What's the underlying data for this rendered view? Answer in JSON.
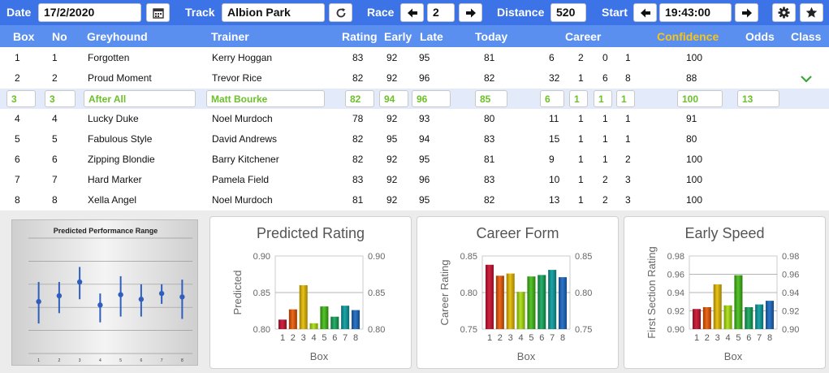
{
  "toolbar": {
    "date_label": "Date",
    "date_value": "17/2/2020",
    "track_label": "Track",
    "track_value": "Albion Park",
    "race_label": "Race",
    "race_value": "2",
    "distance_label": "Distance",
    "distance_value": "520",
    "start_label": "Start",
    "start_value": "19:43:00",
    "icons": [
      "calendar-icon",
      "refresh-icon",
      "arrow-left-icon",
      "arrow-right-icon",
      "gear-icon",
      "star-icon"
    ]
  },
  "columns": {
    "box": "Box",
    "no": "No",
    "greyhound": "Greyhound",
    "trainer": "Trainer",
    "rating": "Rating",
    "early": "Early",
    "late": "Late",
    "today": "Today",
    "career": "Career",
    "confidence": "Confidence",
    "odds": "Odds",
    "class": "Class"
  },
  "colors": {
    "header": "#3c73e6",
    "subheader": "#5a8fef",
    "confidence": "#f5c518",
    "selected_text": "#6cc02a",
    "check": "#3aa63a"
  },
  "rows": [
    {
      "box": "1",
      "no": "1",
      "greyhound": "Forgotten",
      "trainer": "Kerry Hoggan",
      "rating": "83",
      "early": "92",
      "late": "95",
      "today": "81",
      "c1": "6",
      "c2": "2",
      "c3": "0",
      "c4": "1",
      "confidence": "100",
      "odds": "",
      "cls": false
    },
    {
      "box": "2",
      "no": "2",
      "greyhound": "Proud Moment",
      "trainer": "Trevor Rice",
      "rating": "82",
      "early": "92",
      "late": "96",
      "today": "82",
      "c1": "32",
      "c2": "1",
      "c3": "6",
      "c4": "8",
      "confidence": "88",
      "odds": "",
      "cls": true
    },
    {
      "box": "3",
      "no": "3",
      "greyhound": "After All",
      "trainer": "Matt Bourke",
      "rating": "82",
      "early": "94",
      "late": "96",
      "today": "85",
      "c1": "6",
      "c2": "1",
      "c3": "1",
      "c4": "1",
      "confidence": "100",
      "odds": "13",
      "cls": false,
      "selected": true
    },
    {
      "box": "4",
      "no": "4",
      "greyhound": "Lucky Duke",
      "trainer": "Noel Murdoch",
      "rating": "78",
      "early": "92",
      "late": "93",
      "today": "80",
      "c1": "11",
      "c2": "1",
      "c3": "1",
      "c4": "1",
      "confidence": "91",
      "odds": "",
      "cls": false
    },
    {
      "box": "5",
      "no": "5",
      "greyhound": "Fabulous Style",
      "trainer": "David Andrews",
      "rating": "82",
      "early": "95",
      "late": "94",
      "today": "83",
      "c1": "15",
      "c2": "1",
      "c3": "1",
      "c4": "1",
      "confidence": "80",
      "odds": "",
      "cls": false
    },
    {
      "box": "6",
      "no": "6",
      "greyhound": "Zipping Blondie",
      "trainer": "Barry Kitchener",
      "rating": "82",
      "early": "92",
      "late": "95",
      "today": "81",
      "c1": "9",
      "c2": "1",
      "c3": "1",
      "c4": "2",
      "confidence": "100",
      "odds": "",
      "cls": false
    },
    {
      "box": "7",
      "no": "7",
      "greyhound": "Hard Marker",
      "trainer": "Pamela Field",
      "rating": "83",
      "early": "92",
      "late": "96",
      "today": "83",
      "c1": "10",
      "c2": "1",
      "c3": "2",
      "c4": "3",
      "confidence": "100",
      "odds": "",
      "cls": false
    },
    {
      "box": "8",
      "no": "8",
      "greyhound": "Xella Angel",
      "trainer": "Noel Murdoch",
      "rating": "81",
      "early": "92",
      "late": "95",
      "today": "82",
      "c1": "13",
      "c2": "1",
      "c3": "2",
      "c4": "3",
      "confidence": "100",
      "odds": "",
      "cls": false
    }
  ],
  "chart_data": [
    {
      "type": "scatter",
      "title": "Predicted Performance Range",
      "xlabel": "",
      "ylabel": "",
      "categories": [
        "1",
        "2",
        "3",
        "4",
        "5",
        "6",
        "7",
        "8"
      ],
      "values": [
        0.45,
        0.5,
        0.62,
        0.42,
        0.51,
        0.47,
        0.52,
        0.49
      ],
      "low": [
        0.26,
        0.35,
        0.47,
        0.27,
        0.32,
        0.32,
        0.43,
        0.3
      ],
      "high": [
        0.62,
        0.62,
        0.75,
        0.52,
        0.67,
        0.6,
        0.6,
        0.64
      ],
      "ylim": [
        0,
        1
      ],
      "grid": true
    },
    {
      "type": "bar",
      "title": "Predicted Rating",
      "xlabel": "Box",
      "ylabel": "Predicted",
      "categories": [
        "1",
        "2",
        "3",
        "4",
        "5",
        "6",
        "7",
        "8"
      ],
      "values": [
        0.813,
        0.827,
        0.86,
        0.808,
        0.831,
        0.817,
        0.832,
        0.826
      ],
      "ylim": [
        0.8,
        0.9
      ],
      "yticks": [
        "0.90",
        "0.85",
        "0.80"
      ],
      "grid": true
    },
    {
      "type": "bar",
      "title": "Career Form",
      "xlabel": "Box",
      "ylabel": "Career Rating",
      "categories": [
        "1",
        "2",
        "3",
        "4",
        "5",
        "6",
        "7",
        "8"
      ],
      "values": [
        0.838,
        0.823,
        0.826,
        0.801,
        0.822,
        0.824,
        0.831,
        0.821
      ],
      "ylim": [
        0.75,
        0.85
      ],
      "yticks": [
        "0.85",
        "0.80",
        "0.75"
      ],
      "grid": true
    },
    {
      "type": "bar",
      "title": "Early Speed",
      "xlabel": "Box",
      "ylabel": "First Section Rating",
      "categories": [
        "1",
        "2",
        "3",
        "4",
        "5",
        "6",
        "7",
        "8"
      ],
      "values": [
        0.922,
        0.924,
        0.949,
        0.926,
        0.959,
        0.924,
        0.927,
        0.931
      ],
      "ylim": [
        0.9,
        0.98
      ],
      "yticks": [
        "0.98",
        "0.96",
        "0.94",
        "0.92",
        "0.90"
      ],
      "grid": true
    }
  ]
}
